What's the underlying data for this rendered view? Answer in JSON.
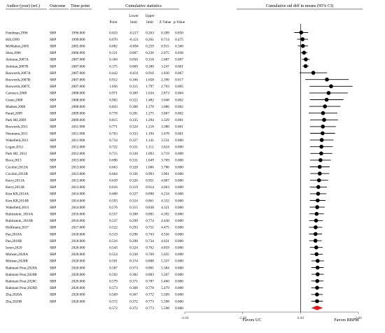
{
  "chart_data": {
    "type": "forest",
    "headers": {
      "study": "Author (year) (ref.)",
      "outcome": "Outcome",
      "time": "Time point",
      "stats_group": "Cumulative statistics",
      "point": "Point",
      "lower": "Lower limit",
      "upper": "Upper limit",
      "z": "Z-Value",
      "p": "p-Value",
      "plot_title": "Cumulative std diff in means (95% CI)"
    },
    "x_ticks": [
      "-4.00",
      "-2.00",
      "0.00",
      "2.00"
    ],
    "xlim": [
      -4,
      2
    ],
    "favors_left": "Favors UC",
    "favors_right": "Favors RBPM",
    "rows": [
      {
        "study": "Friedman,1996",
        "outcome": "SBP",
        "time": "1996.000",
        "point": "0.023",
        "lower": "-0.217",
        "upper": "0.263",
        "z": "0.189",
        "p": "0.850"
      },
      {
        "study": "Hill,1999",
        "outcome": "SBP",
        "time": "1999.000",
        "point": "0.070",
        "lower": "-0.121",
        "upper": "0.261",
        "z": "0.714",
        "p": "0.475"
      },
      {
        "study": "McMahon,2005",
        "outcome": "SBP",
        "time": "2005.000",
        "point": "0.082",
        "lower": "-0.094",
        "upper": "0.259",
        "z": "0.915",
        "p": "0.360"
      },
      {
        "study": "Shea,2006",
        "outcome": "SBP",
        "time": "2006.000",
        "point": "0.121",
        "lower": "0.007",
        "upper": "0.236",
        "z": "2.075",
        "p": "0.038"
      },
      {
        "study": "Artinian,2007A",
        "outcome": "SBP",
        "time": "2007.000",
        "point": "0.184",
        "lower": "0.050",
        "upper": "0.318",
        "z": "2.687",
        "p": "0.007"
      },
      {
        "study": "Artinian,2007B",
        "outcome": "SBP",
        "time": "2007.000",
        "point": "0.175",
        "lower": "0.069",
        "upper": "0.280",
        "z": "3.247",
        "p": "0.001"
      },
      {
        "study": "Bosworth,2007A",
        "outcome": "SBP",
        "time": "2007.000",
        "point": "0.442",
        "lower": "-0.031",
        "upper": "0.916",
        "z": "1.830",
        "p": "0.067"
      },
      {
        "study": "Bosworth,2007B",
        "outcome": "SBP",
        "time": "2007.000",
        "point": "0.912",
        "lower": "0.166",
        "upper": "1.658",
        "z": "2.396",
        "p": "0.017"
      },
      {
        "study": "Bosworth,2007C",
        "outcome": "SBP",
        "time": "2007.000",
        "point": "1.056",
        "lower": "0.315",
        "upper": "1.797",
        "z": "2.793",
        "p": "0.005"
      },
      {
        "study": "Carrasco,2008",
        "outcome": "SBP",
        "time": "2008.000",
        "point": "0.971",
        "lower": "0.309",
        "upper": "1.634",
        "z": "2.873",
        "p": "0.004"
      },
      {
        "study": "Green,2008",
        "outcome": "SBP",
        "time": "2008.000",
        "point": "0.902",
        "lower": "0.322",
        "upper": "1.482",
        "z": "3.048",
        "p": "0.002"
      },
      {
        "study": "Madsen,2008",
        "outcome": "SBP",
        "time": "2008.000",
        "point": "0.843",
        "lower": "0.308",
        "upper": "1.378",
        "z": "3.086",
        "p": "0.002"
      },
      {
        "study": "Parati,2009",
        "outcome": "SBP",
        "time": "2009.000",
        "point": "0.778",
        "lower": "0.281",
        "upper": "1.275",
        "z": "3.067",
        "p": "0.002"
      },
      {
        "study": "Park MJ,2009",
        "outcome": "SBP",
        "time": "2009.000",
        "point": "0.815",
        "lower": "0.335",
        "upper": "1.294",
        "z": "3.329",
        "p": "0.001"
      },
      {
        "study": "Bosworth,2011",
        "outcome": "SBP",
        "time": "2011.000",
        "point": "0.771",
        "lower": "0.324",
        "upper": "1.218",
        "z": "3.380",
        "p": "0.001"
      },
      {
        "study": "Neumann,2011",
        "outcome": "SBP",
        "time": "2011.000",
        "point": "0.763",
        "lower": "0.333",
        "upper": "1.194",
        "z": "3.478",
        "p": "0.001"
      },
      {
        "study": "Wakefield,2011",
        "outcome": "SBP",
        "time": "2011.000",
        "point": "0.734",
        "lower": "0.327",
        "upper": "1.141",
        "z": "3.531",
        "p": "0.000"
      },
      {
        "study": "Logan,2012",
        "outcome": "SBP",
        "time": "2012.000",
        "point": "0.722",
        "lower": "0.331",
        "upper": "1.112",
        "z": "3.624",
        "p": "0.000"
      },
      {
        "study": "Park MJ, 2012",
        "outcome": "SBP",
        "time": "2012.000",
        "point": "0.715",
        "lower": "0.338",
        "upper": "1.093",
        "z": "3.719",
        "p": "0.000"
      },
      {
        "study": "Bove,2013",
        "outcome": "SBP",
        "time": "2013.000",
        "point": "0.690",
        "lower": "0.331",
        "upper": "1.049",
        "z": "3.769",
        "p": "0.000"
      },
      {
        "study": "Cicolini,2013A",
        "outcome": "SBP",
        "time": "2013.000",
        "point": "0.663",
        "lower": "0.320",
        "upper": "1.006",
        "z": "3.786",
        "p": "0.000"
      },
      {
        "study": "Cicolini,2013B",
        "outcome": "SBP",
        "time": "2013.000",
        "point": "0.664",
        "lower": "0.336",
        "upper": "0.993",
        "z": "3.961",
        "p": "0.000"
      },
      {
        "study": "Kerry,2013A",
        "outcome": "SBP",
        "time": "2013.000",
        "point": "0.639",
        "lower": "0.326",
        "upper": "0.951",
        "z": "4.007",
        "p": "0.000"
      },
      {
        "study": "Kerry,2013B",
        "outcome": "SBP",
        "time": "2013.000",
        "point": "0.616",
        "lower": "0.319",
        "upper": "0.914",
        "z": "4.063",
        "p": "0.000"
      },
      {
        "study": "Kim KB,2014A",
        "outcome": "SBP",
        "time": "2014.000",
        "point": "0.608",
        "lower": "0.327",
        "upper": "0.890",
        "z": "4.234",
        "p": "0.000"
      },
      {
        "study": "Kim KB,2014B",
        "outcome": "SBP",
        "time": "2014.000",
        "point": "0.593",
        "lower": "0.324",
        "upper": "0.861",
        "z": "4.332",
        "p": "0.000"
      },
      {
        "study": "Wakefield,2014",
        "outcome": "SBP",
        "time": "2014.000",
        "point": "0.576",
        "lower": "0.315",
        "upper": "0.838",
        "z": "4.321",
        "p": "0.000"
      },
      {
        "study": "Rubinstein, 2016A",
        "outcome": "SBP",
        "time": "2016.000",
        "point": "0.557",
        "lower": "0.308",
        "upper": "0.805",
        "z": "4.392",
        "p": "0.000"
      },
      {
        "study": "Rubinstein, 2016B",
        "outcome": "SBP",
        "time": "2016.000",
        "point": "0.537",
        "lower": "0.299",
        "upper": "0.774",
        "z": "4.430",
        "p": "0.000"
      },
      {
        "study": "Hoffmann,2017",
        "outcome": "SBP",
        "time": "2017.000",
        "point": "0.522",
        "lower": "0.293",
        "upper": "0.751",
        "z": "4.475",
        "p": "0.000"
      },
      {
        "study": "Pan,2018A",
        "outcome": "SBP",
        "time": "2018.000",
        "point": "0.519",
        "lower": "0.296",
        "upper": "0.743",
        "z": "4.556",
        "p": "0.000"
      },
      {
        "study": "Pan,2018B",
        "outcome": "SBP",
        "time": "2018.000",
        "point": "0.516",
        "lower": "0.298",
        "upper": "0.734",
        "z": "4.631",
        "p": "0.000"
      },
      {
        "study": "Ionov,2020",
        "outcome": "SBP",
        "time": "2020.000",
        "point": "0.543",
        "lower": "0.324",
        "upper": "0.762",
        "z": "4.859",
        "p": "0.000"
      },
      {
        "study": "Mohsen,2020A",
        "outcome": "SBP",
        "time": "2020.000",
        "point": "0.554",
        "lower": "0.338",
        "upper": "0.769",
        "z": "5.035",
        "p": "0.000"
      },
      {
        "study": "Mohsen,2020B",
        "outcome": "SBP",
        "time": "2020.000",
        "point": "0.591",
        "lower": "0.374",
        "upper": "0.808",
        "z": "5.337",
        "p": "0.000"
      },
      {
        "study": "Rahmani Pour,2020A",
        "outcome": "SBP",
        "time": "2020.000",
        "point": "0.587",
        "lower": "0.373",
        "upper": "0.801",
        "z": "5.384",
        "p": "0.000"
      },
      {
        "study": "Rahmani Pour,2020B",
        "outcome": "SBP",
        "time": "2020.000",
        "point": "0.592",
        "lower": "0.382",
        "upper": "0.803",
        "z": "5.507",
        "p": "0.000"
      },
      {
        "study": "Rahmani Pour,2020C",
        "outcome": "SBP",
        "time": "2020.000",
        "point": "0.579",
        "lower": "0.371",
        "upper": "0.787",
        "z": "5.460",
        "p": "0.000"
      },
      {
        "study": "Rahmani Pour,2020D",
        "outcome": "SBP",
        "time": "2020.000",
        "point": "0.573",
        "lower": "0.368",
        "upper": "0.778",
        "z": "5.479",
        "p": "0.000"
      },
      {
        "study": "Zha,2020A",
        "outcome": "SBP",
        "time": "2020.000",
        "point": "0.569",
        "lower": "0.367",
        "upper": "0.772",
        "z": "5.509",
        "p": "0.000"
      },
      {
        "study": "Zha,2020B",
        "outcome": "SBP",
        "time": "2020.000",
        "point": "0.572",
        "lower": "0.372",
        "upper": "0.773",
        "z": "5.598",
        "p": "0.000"
      }
    ],
    "summary": {
      "point": "0.572",
      "lower": "0.372",
      "upper": "0.773",
      "z": "5.598",
      "p": "0.000"
    },
    "colors": {
      "marker": "#000000",
      "summary": "#e8141c",
      "line": "#000000",
      "grid": "#bbbbbb"
    }
  }
}
